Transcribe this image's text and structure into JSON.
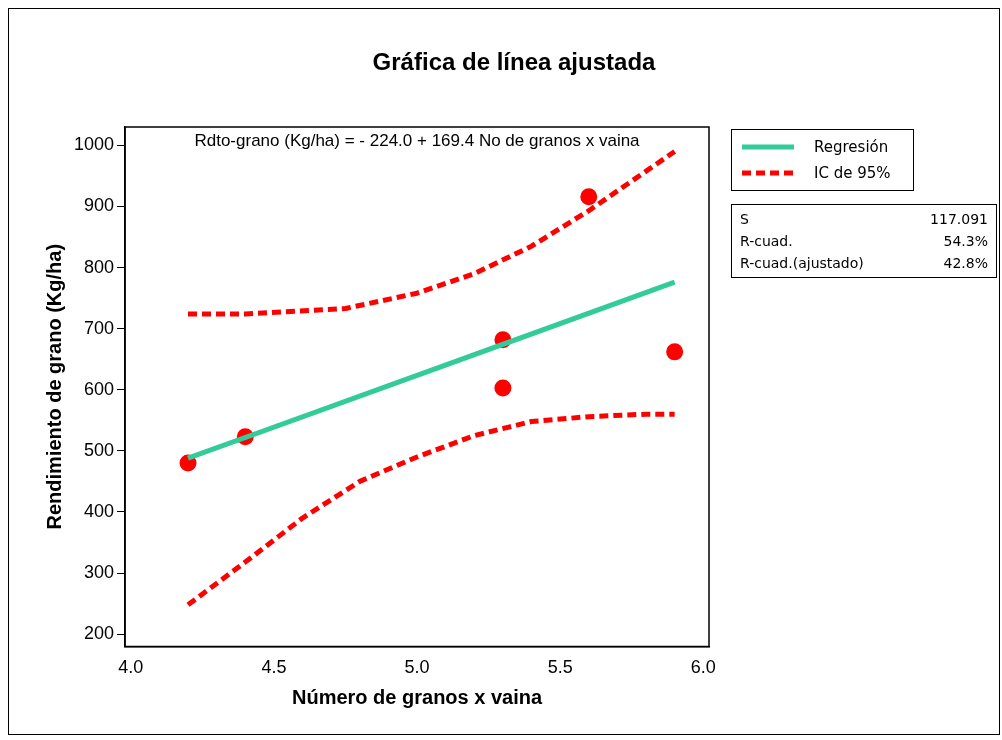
{
  "chart_data": {
    "type": "line",
    "title": "Gráfica de línea ajustada",
    "xlabel": "Número de granos x vaina",
    "ylabel": "Rendimiento de grano (Kg/ha)",
    "xlim": [
      3.98,
      6.02
    ],
    "xticks": [
      {
        "value": 4,
        "label": "4.0"
      },
      {
        "value": 4.5,
        "label": "4.5"
      },
      {
        "value": 5,
        "label": "5.0"
      },
      {
        "value": 5.5,
        "label": "5.5"
      },
      {
        "value": 6,
        "label": "6.0"
      }
    ],
    "ylim": [
      180,
      1030
    ],
    "yticks": [
      200,
      300,
      400,
      500,
      600,
      700,
      800,
      900,
      1000
    ],
    "grid": false,
    "legend": "top right",
    "annotations": [
      "Rdto-grano (Kg/ha) = - 224.0 + 169.4 No de granos x vaina",
      "S",
      "117.091",
      "R-cuad.",
      "54.3%",
      "R-cuad.(ajustado)",
      "42.8%"
    ],
    "series": [
      {
        "type": "line",
        "name": "Regresión",
        "color": "#33cc99",
        "line_style": "solid",
        "marker": "none",
        "x": [
          4.2,
          5.9
        ],
        "values": [
          488,
          776
        ]
      },
      {
        "type": "line",
        "name": "IC de 95%",
        "color": "#ff0000",
        "line_style": "dashed",
        "marker": "none",
        "x": [
          4.2,
          4.4,
          4.75,
          5.0,
          5.2,
          5.4,
          5.6,
          5.9
        ],
        "values": [
          724,
          724,
          733,
          758,
          790,
          835,
          893,
          990
        ]
      },
      {
        "type": "line",
        "color": "#ff0000",
        "line_style": "dashed",
        "marker": "none",
        "x": [
          4.2,
          4.4,
          4.6,
          4.8,
          5.0,
          5.2,
          5.4,
          5.6,
          5.8,
          5.9
        ],
        "values": [
          248,
          318,
          390,
          450,
          490,
          525,
          548,
          556,
          560,
          560
        ]
      },
      {
        "type": "scatter",
        "color": "#ff0000",
        "marker": "circle",
        "x": [
          4.2,
          4.4,
          5.3,
          5.3,
          5.6,
          5.9
        ],
        "values": [
          480,
          523,
          682,
          603,
          916,
          662
        ]
      }
    ]
  }
}
